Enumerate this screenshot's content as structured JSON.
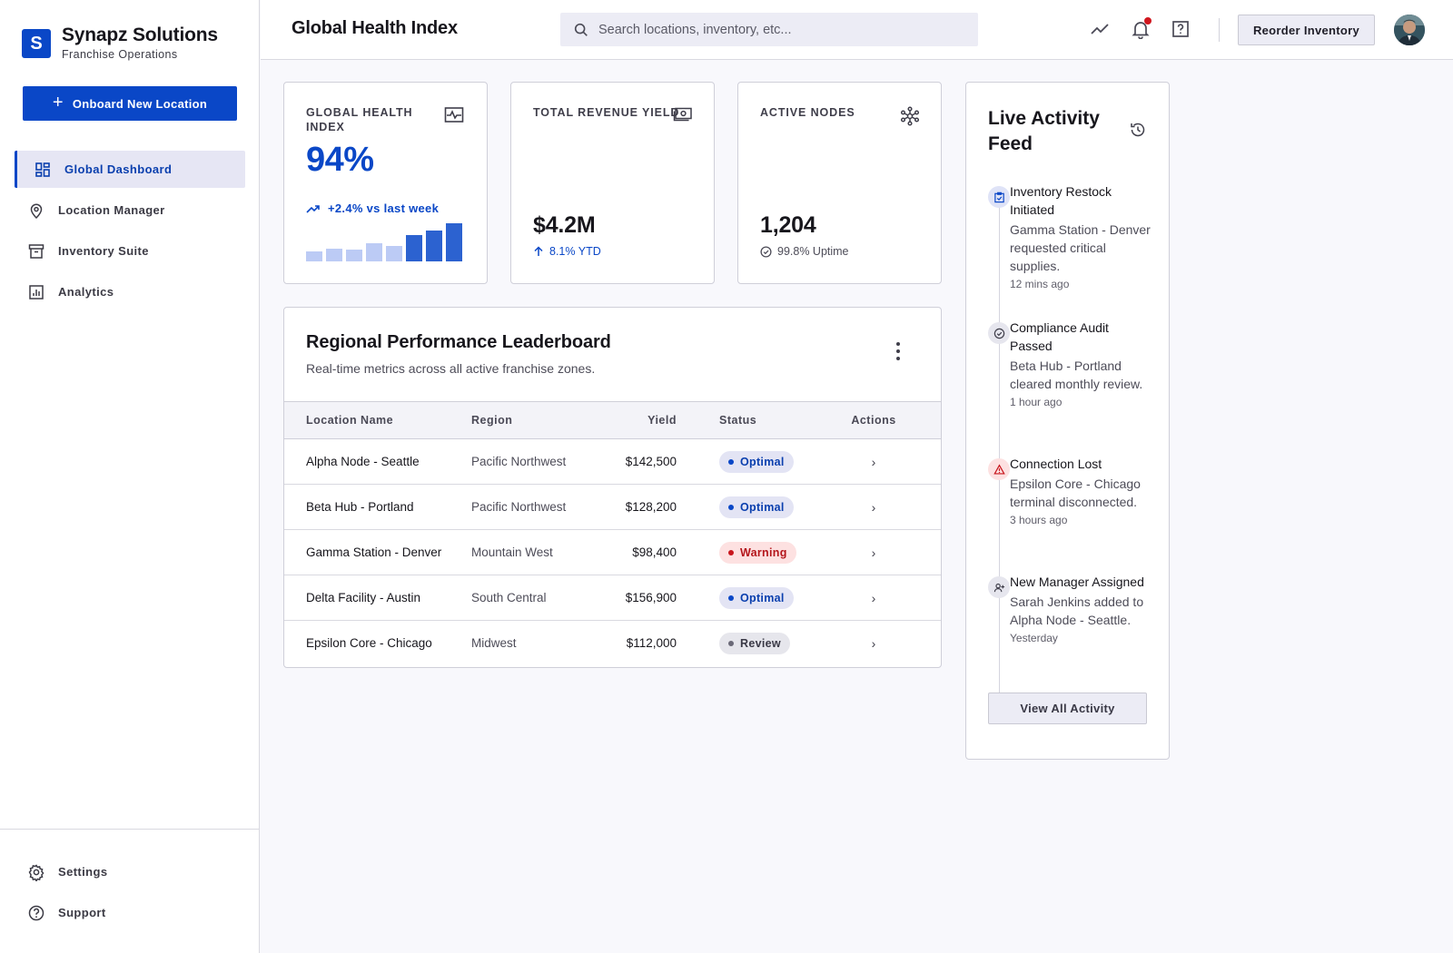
{
  "brand": {
    "logo_letter": "S",
    "name": "Synapz Solutions",
    "subtitle": "Franchise Operations"
  },
  "cta": {
    "label": "Onboard New Location"
  },
  "sidebar": {
    "items": [
      {
        "label": "Global Dashboard",
        "icon": "dashboard-icon",
        "active": true
      },
      {
        "label": "Location Manager",
        "icon": "location-pin-icon"
      },
      {
        "label": "Inventory Suite",
        "icon": "archive-icon"
      },
      {
        "label": "Analytics",
        "icon": "bar-chart-icon"
      }
    ],
    "bottom": [
      {
        "label": "Settings",
        "icon": "gear-icon"
      },
      {
        "label": "Support",
        "icon": "help-circle-icon"
      }
    ]
  },
  "header": {
    "title": "Global Health Index",
    "search_placeholder": "Search locations, inventory, etc...",
    "reorder_label": "Reorder Inventory",
    "icons": [
      "trending-icon",
      "bell-icon",
      "help-icon"
    ]
  },
  "stats": {
    "health": {
      "label": "GLOBAL HEALTH INDEX",
      "value": "94%",
      "trend": "+2.4% vs last week",
      "bars": [
        0.24,
        0.32,
        0.29,
        0.45,
        0.38,
        0.67,
        0.78,
        0.95
      ],
      "icon": "monitor-heart-icon"
    },
    "revenue": {
      "label": "TOTAL REVENUE YIELD",
      "value": "$4.2M",
      "sub": "8.1% YTD",
      "icon": "cash-icon"
    },
    "nodes": {
      "label": "ACTIVE NODES",
      "value": "1,204",
      "sub": "99.8% Uptime",
      "icon": "hub-icon"
    }
  },
  "leaderboard": {
    "title": "Regional Performance Leaderboard",
    "subtitle": "Real-time metrics across all active franchise zones.",
    "columns": [
      "Location Name",
      "Region",
      "Yield",
      "Status",
      "Actions"
    ],
    "rows": [
      {
        "name": "Alpha Node - Seattle",
        "region": "Pacific Northwest",
        "yield": "$142,500",
        "status": "Optimal"
      },
      {
        "name": "Beta Hub - Portland",
        "region": "Pacific Northwest",
        "yield": "$128,200",
        "status": "Optimal"
      },
      {
        "name": "Gamma Station - Denver",
        "region": "Mountain West",
        "yield": "$98,400",
        "status": "Warning"
      },
      {
        "name": "Delta Facility - Austin",
        "region": "South Central",
        "yield": "$156,900",
        "status": "Optimal"
      },
      {
        "name": "Epsilon Core - Chicago",
        "region": "Midwest",
        "yield": "$112,000",
        "status": "Review"
      }
    ]
  },
  "feed": {
    "title": "Live Activity Feed",
    "events": [
      {
        "title": "Inventory Restock Initiated",
        "desc": "Gamma Station - Denver requested critical supplies.",
        "time": "12 mins ago",
        "icon": "clipboard-icon",
        "tone": "blue"
      },
      {
        "title": "Compliance Audit Passed",
        "desc": "Beta Hub - Portland cleared monthly review.",
        "time": "1 hour ago",
        "icon": "check-circle-icon",
        "tone": "gray"
      },
      {
        "title": "Connection Lost",
        "desc": "Epsilon Core - Chicago terminal disconnected.",
        "time": "3 hours ago",
        "icon": "warning-icon",
        "tone": "red"
      },
      {
        "title": "New Manager Assigned",
        "desc": "Sarah Jenkins added to Alpha Node - Seattle.",
        "time": "Yesterday",
        "icon": "person-add-icon",
        "tone": "gray"
      }
    ],
    "view_all": "View All Activity"
  },
  "colors": {
    "accent": "#0a47c7",
    "optimal_bg": "#e3e4f4",
    "optimal_fg": "#0a3fae",
    "warning_bg": "#fde1e1",
    "warning_fg": "#b4151b",
    "review_bg": "#e6e6ec",
    "review_fg": "#3a3946"
  }
}
